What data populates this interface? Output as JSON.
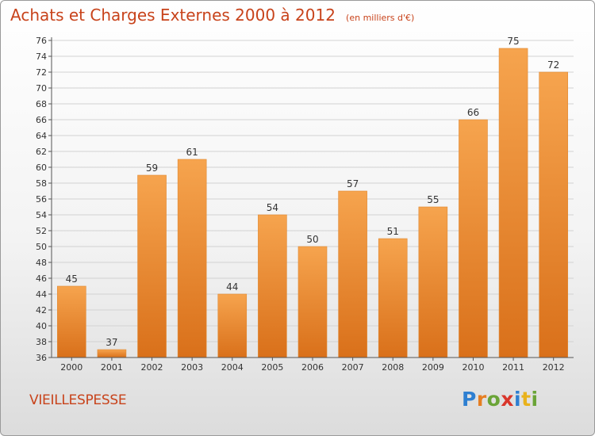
{
  "header": {
    "title": "Achats et Charges Externes 2000 à 2012",
    "unit": "(en milliers d'€)"
  },
  "commune": "VIEILLESPESSE",
  "logo": {
    "letters": [
      "P",
      "r",
      "o",
      "x",
      "i",
      "t",
      "i"
    ],
    "colors": [
      "#2e7fd1",
      "#e67e22",
      "#6aa437",
      "#d9362b",
      "#2e7fd1",
      "#e9b21c",
      "#6aa437"
    ]
  },
  "colors": {
    "bar_light": "#f6a44e",
    "bar_dark": "#d9701a",
    "bar_edge": "#e08a34",
    "grid": "#d2d2d2",
    "axis": "#555555",
    "text": "#333333"
  },
  "chart_data": {
    "type": "bar",
    "title": "Achats et Charges Externes 2000 à 2012",
    "categories": [
      "2000",
      "2001",
      "2002",
      "2003",
      "2004",
      "2005",
      "2006",
      "2007",
      "2008",
      "2009",
      "2010",
      "2011",
      "2012"
    ],
    "values": [
      45,
      37,
      59,
      61,
      44,
      54,
      50,
      57,
      51,
      55,
      66,
      75,
      72
    ],
    "ylim": [
      36,
      76
    ],
    "yticks": [
      36,
      38,
      40,
      42,
      44,
      46,
      48,
      50,
      52,
      54,
      56,
      58,
      60,
      62,
      64,
      66,
      68,
      70,
      72,
      74,
      76
    ],
    "grid": true,
    "xlabel": "",
    "ylabel": ""
  }
}
